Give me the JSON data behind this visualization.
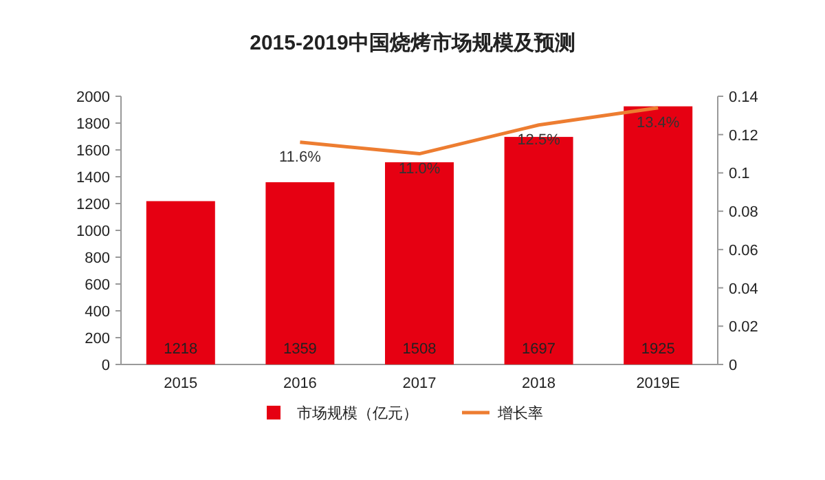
{
  "chart_data": {
    "type": "bar",
    "title": "2015-2019中国烧烤市场规模及预测",
    "categories": [
      "2015",
      "2016",
      "2017",
      "2018",
      "2019E"
    ],
    "series": [
      {
        "name": "市场规模（亿元）",
        "color": "#e60012",
        "values": [
          1218,
          1359,
          1508,
          1697,
          1925
        ],
        "data_labels": true
      },
      {
        "name": "增长率",
        "type": "line",
        "axis": "y2",
        "color": "#ed7d31",
        "values": [
          null,
          0.116,
          0.11,
          0.125,
          0.134
        ],
        "value_labels": [
          null,
          "11.6%",
          "11.0%",
          "12.5%",
          "13.4%"
        ]
      }
    ],
    "ylim": [
      0,
      2000
    ],
    "yticks": [
      0,
      200,
      400,
      600,
      800,
      1000,
      1200,
      1400,
      1600,
      1800,
      2000
    ],
    "y2lim": [
      0,
      0.14
    ],
    "y2ticks": [
      0,
      0.02,
      0.04,
      0.06,
      0.08,
      0.1,
      0.12,
      0.14
    ],
    "legend": "bottom"
  }
}
